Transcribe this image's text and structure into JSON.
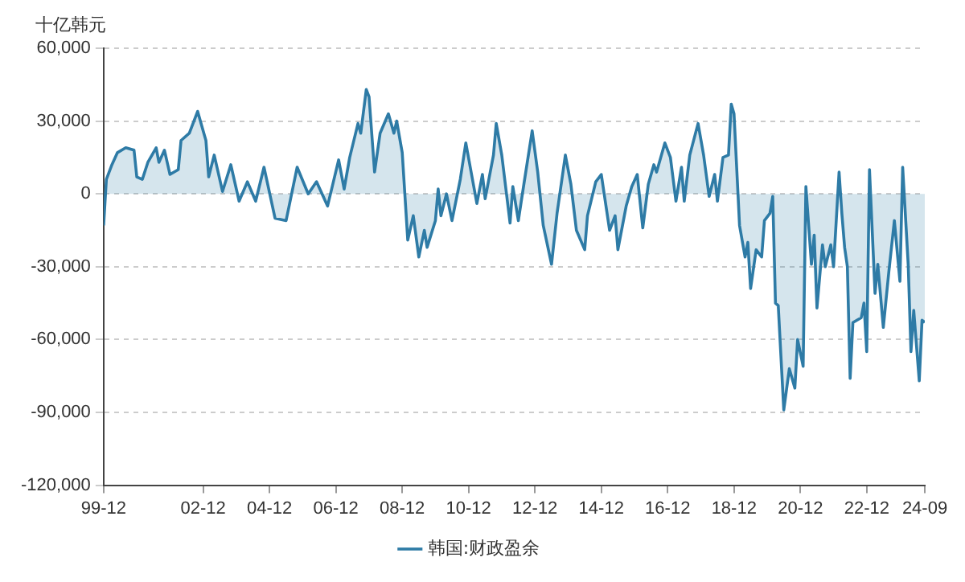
{
  "chart_data": {
    "type": "area",
    "ylabel": "十亿韩元",
    "x": [
      "1999-12",
      "2000-01",
      "2000-03",
      "2000-05",
      "2000-08",
      "2000-11",
      "2000-12",
      "2001-02",
      "2001-04",
      "2001-07",
      "2001-08",
      "2001-10",
      "2001-12",
      "2002-03",
      "2002-04",
      "2002-07",
      "2002-10",
      "2003-01",
      "2003-02",
      "2003-04",
      "2003-07",
      "2003-10",
      "2004-01",
      "2004-04",
      "2004-07",
      "2004-10",
      "2005-02",
      "2005-06",
      "2005-10",
      "2006-02",
      "2006-05",
      "2006-09",
      "2007-01",
      "2007-03",
      "2007-05",
      "2007-08",
      "2007-09",
      "2007-11",
      "2007-12",
      "2008-02",
      "2008-04",
      "2008-07",
      "2008-09",
      "2008-10",
      "2008-12",
      "2009-02",
      "2009-04",
      "2009-06",
      "2009-08",
      "2009-09",
      "2009-12",
      "2010-01",
      "2010-02",
      "2010-04",
      "2010-06",
      "2010-09",
      "2010-11",
      "2011-03",
      "2011-05",
      "2011-06",
      "2011-09",
      "2011-10",
      "2011-12",
      "2012-03",
      "2012-04",
      "2012-06",
      "2012-08",
      "2012-11",
      "2013-01",
      "2013-03",
      "2013-06",
      "2013-08",
      "2013-11",
      "2014-01",
      "2014-03",
      "2014-06",
      "2014-07",
      "2014-10",
      "2014-12",
      "2015-03",
      "2015-05",
      "2015-06",
      "2015-09",
      "2015-11",
      "2016-01",
      "2016-03",
      "2016-05",
      "2016-07",
      "2016-08",
      "2016-11",
      "2017-01",
      "2017-03",
      "2017-05",
      "2017-06",
      "2017-08",
      "2017-11",
      "2018-01",
      "2018-03",
      "2018-05",
      "2018-06",
      "2018-08",
      "2018-10",
      "2018-11",
      "2018-12",
      "2019-02",
      "2019-04",
      "2019-05",
      "2019-06",
      "2019-08",
      "2019-10",
      "2019-11",
      "2020-01",
      "2020-02",
      "2020-03",
      "2020-04",
      "2020-06",
      "2020-08",
      "2020-10",
      "2020-11",
      "2021-01",
      "2021-02",
      "2021-04",
      "2021-05",
      "2021-06",
      "2021-08",
      "2021-09",
      "2021-11",
      "2021-12",
      "2022-02",
      "2022-03",
      "2022-04",
      "2022-05",
      "2022-06",
      "2022-07",
      "2022-10",
      "2022-11",
      "2022-12",
      "2023-01",
      "2023-03",
      "2023-04",
      "2023-06",
      "2023-08",
      "2023-10",
      "2023-12",
      "2024-01",
      "2024-03",
      "2024-04",
      "2024-05",
      "2024-07",
      "2024-08",
      "2024-09"
    ],
    "series": [
      {
        "name": "韩国:财政盈余",
        "color": "#2e7ba6",
        "values": [
          -13000,
          6000,
          12000,
          17000,
          19000,
          18000,
          7000,
          6000,
          13000,
          19000,
          13000,
          18000,
          8000,
          10000,
          22000,
          25000,
          34000,
          22000,
          7000,
          16000,
          1000,
          12000,
          -3000,
          5000,
          -3000,
          11000,
          -10000,
          -11000,
          11000,
          0,
          5000,
          -5000,
          14000,
          2000,
          15000,
          29000,
          25000,
          43000,
          40000,
          9000,
          25000,
          33000,
          25000,
          30000,
          17000,
          -19000,
          -9000,
          -26000,
          -15000,
          -22000,
          -11000,
          2000,
          -9000,
          0,
          -11000,
          6000,
          21000,
          -4000,
          8000,
          -2000,
          16000,
          29000,
          16000,
          -12000,
          3000,
          -11000,
          4000,
          26000,
          9000,
          -13000,
          -29000,
          -8000,
          16000,
          4000,
          -15000,
          -23000,
          -9000,
          5000,
          8000,
          -15000,
          -9000,
          -23000,
          -5000,
          3000,
          8000,
          -14000,
          4000,
          12000,
          9000,
          21000,
          15000,
          -3000,
          11000,
          -3000,
          16000,
          29000,
          16000,
          -1000,
          8000,
          -3000,
          15000,
          16000,
          37000,
          33000,
          -13000,
          -26000,
          -20000,
          -39000,
          -23000,
          -26000,
          -11000,
          -8000,
          -1000,
          -45000,
          -46000,
          -89000,
          -72000,
          -80000,
          -60000,
          -71000,
          3000,
          -29000,
          -17000,
          -47000,
          -21000,
          -30000,
          -21000,
          -30000,
          9000,
          -8000,
          -22000,
          -30000,
          -76000,
          -53000,
          -51000,
          -45000,
          -65000,
          10000,
          -41000,
          -29000,
          -55000,
          -32000,
          -11000,
          -36000,
          11000,
          -29000,
          -65000,
          -48000,
          -77000,
          -52000,
          -53000
        ]
      }
    ],
    "xlim": [
      "1999-12",
      "2024-09"
    ],
    "xticks": [
      {
        "value": "1999-12",
        "label": "99-12"
      },
      {
        "value": "2002-12",
        "label": "02-12"
      },
      {
        "value": "2004-12",
        "label": "04-12"
      },
      {
        "value": "2006-12",
        "label": "06-12"
      },
      {
        "value": "2008-12",
        "label": "08-12"
      },
      {
        "value": "2010-12",
        "label": "10-12"
      },
      {
        "value": "2012-12",
        "label": "12-12"
      },
      {
        "value": "2014-12",
        "label": "14-12"
      },
      {
        "value": "2016-12",
        "label": "16-12"
      },
      {
        "value": "2018-12",
        "label": "18-12"
      },
      {
        "value": "2020-12",
        "label": "20-12"
      },
      {
        "value": "2022-12",
        "label": "22-12"
      },
      {
        "value": "2024-09",
        "label": "24-09"
      }
    ],
    "ylim": [
      -120000,
      60000
    ],
    "yticks": [
      {
        "value": -120000,
        "label": "-120,000"
      },
      {
        "value": -90000,
        "label": "-90,000"
      },
      {
        "value": -60000,
        "label": "-60,000"
      },
      {
        "value": -30000,
        "label": "-30,000"
      },
      {
        "value": 0,
        "label": "0"
      },
      {
        "value": 30000,
        "label": "30,000"
      },
      {
        "value": 60000,
        "label": "60,000"
      }
    ],
    "grid": "y",
    "legend": "bottom"
  }
}
